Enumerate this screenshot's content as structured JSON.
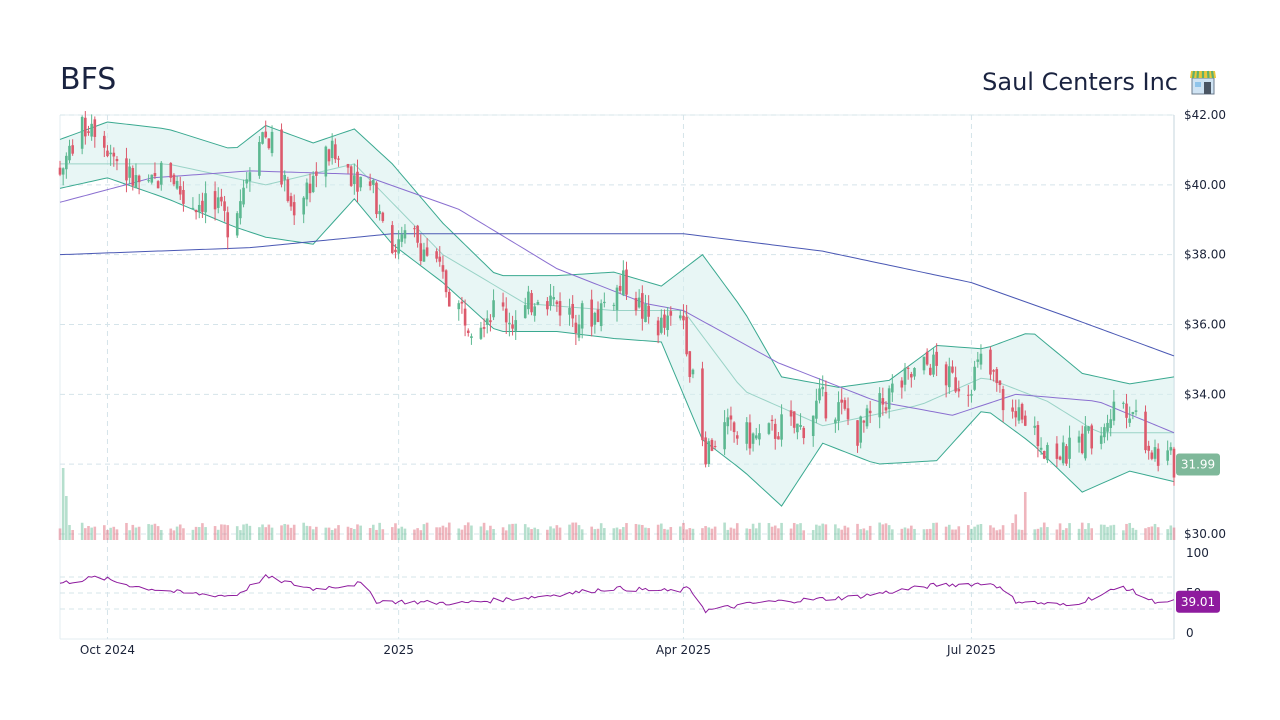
{
  "header": {
    "ticker": "BFS",
    "company": "Saul Centers Inc",
    "company_icon": "store-icon"
  },
  "colors": {
    "up": "#5cb891",
    "down": "#dc5a6c",
    "band_fill": "#d6efec",
    "band_line": "#3aa990",
    "mid_line": "#9ad3c7",
    "ma_short": "#8a6fd0",
    "ma_long": "#4a58b4",
    "rsi": "#8e1b9e",
    "price_badge": "#7fb89a",
    "rsi_badge": "#8e1b9e"
  },
  "chart_data": {
    "type": "candlestick",
    "price_axis": {
      "ylim": [
        30,
        42
      ],
      "ticks": [
        42,
        40,
        38,
        36,
        34,
        32,
        30
      ],
      "tick_labels": [
        "$42.00",
        "$40.00",
        "$38.00",
        "$36.00",
        "$34.00",
        "",
        "$30.00"
      ]
    },
    "x_axis": {
      "range": [
        "2024-09-16",
        "2025-09-03"
      ],
      "ticks": [
        {
          "date": "2024-10-01",
          "label": "Oct 2024"
        },
        {
          "date": "2025-01-01",
          "label": "2025"
        },
        {
          "date": "2025-04-01",
          "label": "Apr 2025"
        },
        {
          "date": "2025-07-01",
          "label": "Jul 2025"
        }
      ]
    },
    "last_price": "31.99",
    "grid": true,
    "series": {
      "close_points": [
        [
          "2024-09-16",
          40.3
        ],
        [
          "2024-09-20",
          41.2
        ],
        [
          "2024-09-26",
          41.9
        ],
        [
          "2024-10-02",
          41.0
        ],
        [
          "2024-10-08",
          40.2
        ],
        [
          "2024-10-14",
          39.8
        ],
        [
          "2024-10-20",
          40.6
        ],
        [
          "2024-10-26",
          39.4
        ],
        [
          "2024-11-01",
          39.6
        ],
        [
          "2024-11-08",
          38.9
        ],
        [
          "2024-11-12",
          39.7
        ],
        [
          "2024-11-18",
          41.6
        ],
        [
          "2024-11-22",
          41.2
        ],
        [
          "2024-11-28",
          39.3
        ],
        [
          "2024-12-04",
          40.1
        ],
        [
          "2024-12-10",
          40.9
        ],
        [
          "2024-12-16",
          40.5
        ],
        [
          "2024-12-22",
          40.0
        ],
        [
          "2024-12-28",
          39.2
        ],
        [
          "2024-12-30",
          38.2
        ],
        [
          "2025-01-06",
          38.5
        ],
        [
          "2025-01-12",
          37.8
        ],
        [
          "2025-01-18",
          36.7
        ],
        [
          "2025-01-24",
          36.1
        ],
        [
          "2025-02-01",
          36.5
        ],
        [
          "2025-02-08",
          36.0
        ],
        [
          "2025-02-14",
          37.0
        ],
        [
          "2025-02-20",
          36.6
        ],
        [
          "2025-02-26",
          36.2
        ],
        [
          "2025-03-04",
          36.3
        ],
        [
          "2025-03-10",
          36.9
        ],
        [
          "2025-03-14",
          37.2
        ],
        [
          "2025-03-20",
          36.2
        ],
        [
          "2025-03-26",
          35.9
        ],
        [
          "2025-04-01",
          36.2
        ],
        [
          "2025-04-04",
          34.3
        ],
        [
          "2025-04-08",
          32.4
        ],
        [
          "2025-04-14",
          33.0
        ],
        [
          "2025-04-20",
          32.8
        ],
        [
          "2025-04-26",
          32.7
        ],
        [
          "2025-05-02",
          33.1
        ],
        [
          "2025-05-08",
          33.0
        ],
        [
          "2025-05-14",
          33.8
        ],
        [
          "2025-05-20",
          33.6
        ],
        [
          "2025-05-26",
          32.9
        ],
        [
          "2025-06-01",
          33.5
        ],
        [
          "2025-06-06",
          34.1
        ],
        [
          "2025-06-12",
          34.5
        ],
        [
          "2025-06-18",
          34.9
        ],
        [
          "2025-06-24",
          34.4
        ],
        [
          "2025-06-30",
          34.3
        ],
        [
          "2025-07-04",
          34.9
        ],
        [
          "2025-07-08",
          34.4
        ],
        [
          "2025-07-12",
          33.6
        ],
        [
          "2025-07-18",
          33.0
        ],
        [
          "2025-07-24",
          32.6
        ],
        [
          "2025-07-30",
          32.2
        ],
        [
          "2025-08-05",
          32.7
        ],
        [
          "2025-08-11",
          33.1
        ],
        [
          "2025-08-17",
          33.9
        ],
        [
          "2025-08-21",
          33.6
        ],
        [
          "2025-08-27",
          32.4
        ],
        [
          "2025-09-03",
          31.99
        ]
      ],
      "bollinger_upper": [
        [
          "2024-09-16",
          41.3
        ],
        [
          "2024-10-01",
          41.8
        ],
        [
          "2024-10-20",
          41.6
        ],
        [
          "2024-11-10",
          41.0
        ],
        [
          "2024-11-20",
          41.7
        ],
        [
          "2024-12-05",
          41.2
        ],
        [
          "2024-12-18",
          41.6
        ],
        [
          "2024-12-30",
          40.6
        ],
        [
          "2025-01-15",
          38.9
        ],
        [
          "2025-02-01",
          37.4
        ],
        [
          "2025-02-20",
          37.4
        ],
        [
          "2025-03-10",
          37.5
        ],
        [
          "2025-03-25",
          37.1
        ],
        [
          "2025-04-07",
          38.0
        ],
        [
          "2025-04-20",
          36.4
        ],
        [
          "2025-05-02",
          34.5
        ],
        [
          "2025-05-20",
          34.2
        ],
        [
          "2025-06-05",
          34.4
        ],
        [
          "2025-06-20",
          35.4
        ],
        [
          "2025-07-05",
          35.3
        ],
        [
          "2025-07-20",
          35.8
        ],
        [
          "2025-08-05",
          34.6
        ],
        [
          "2025-08-20",
          34.3
        ],
        [
          "2025-09-03",
          34.5
        ]
      ],
      "bollinger_lower": [
        [
          "2024-09-16",
          39.9
        ],
        [
          "2024-10-01",
          40.2
        ],
        [
          "2024-10-20",
          39.6
        ],
        [
          "2024-11-10",
          38.8
        ],
        [
          "2024-11-20",
          38.5
        ],
        [
          "2024-12-05",
          38.3
        ],
        [
          "2024-12-18",
          39.6
        ],
        [
          "2024-12-30",
          38.3
        ],
        [
          "2025-01-15",
          37.2
        ],
        [
          "2025-02-01",
          35.8
        ],
        [
          "2025-02-20",
          35.8
        ],
        [
          "2025-03-10",
          35.6
        ],
        [
          "2025-03-25",
          35.5
        ],
        [
          "2025-04-07",
          32.7
        ],
        [
          "2025-04-20",
          31.8
        ],
        [
          "2025-05-02",
          30.8
        ],
        [
          "2025-05-15",
          32.6
        ],
        [
          "2025-06-01",
          32.0
        ],
        [
          "2025-06-20",
          32.1
        ],
        [
          "2025-07-05",
          33.6
        ],
        [
          "2025-07-20",
          32.6
        ],
        [
          "2025-08-05",
          31.2
        ],
        [
          "2025-08-20",
          31.8
        ],
        [
          "2025-09-03",
          31.5
        ]
      ],
      "bollinger_mid": [
        [
          "2024-09-16",
          40.6
        ],
        [
          "2024-10-20",
          40.6
        ],
        [
          "2024-11-20",
          40.0
        ],
        [
          "2024-12-18",
          40.6
        ],
        [
          "2025-01-15",
          38.0
        ],
        [
          "2025-02-10",
          36.6
        ],
        [
          "2025-03-10",
          36.4
        ],
        [
          "2025-04-01",
          36.4
        ],
        [
          "2025-04-20",
          34.1
        ],
        [
          "2025-05-15",
          33.1
        ],
        [
          "2025-06-15",
          33.7
        ],
        [
          "2025-07-05",
          34.5
        ],
        [
          "2025-07-25",
          33.8
        ],
        [
          "2025-08-10",
          32.9
        ],
        [
          "2025-09-03",
          32.9
        ]
      ],
      "ma_short": [
        [
          "2024-09-16",
          39.5
        ],
        [
          "2024-10-15",
          40.2
        ],
        [
          "2024-11-15",
          40.4
        ],
        [
          "2024-12-20",
          40.3
        ],
        [
          "2025-01-20",
          39.3
        ],
        [
          "2025-02-20",
          37.6
        ],
        [
          "2025-03-20",
          36.6
        ],
        [
          "2025-04-01",
          36.4
        ],
        [
          "2025-05-01",
          34.9
        ],
        [
          "2025-06-01",
          33.8
        ],
        [
          "2025-06-25",
          33.4
        ],
        [
          "2025-07-15",
          34.0
        ],
        [
          "2025-08-10",
          33.8
        ],
        [
          "2025-09-03",
          32.9
        ]
      ],
      "ma_long": [
        [
          "2024-09-16",
          38.0
        ],
        [
          "2024-11-15",
          38.2
        ],
        [
          "2024-12-30",
          38.6
        ],
        [
          "2025-02-15",
          38.6
        ],
        [
          "2025-04-01",
          38.6
        ],
        [
          "2025-05-15",
          38.1
        ],
        [
          "2025-07-01",
          37.2
        ],
        [
          "2025-08-01",
          36.2
        ],
        [
          "2025-09-03",
          35.1
        ]
      ]
    },
    "volume": [
      [
        "2024-09-17",
        0.9
      ],
      [
        "2024-09-18",
        0.55
      ],
      [
        "2024-10-20",
        0.25
      ],
      [
        "2024-12-20",
        0.18
      ],
      [
        "2025-04-04",
        0.14
      ],
      [
        "2025-07-15",
        0.32
      ],
      [
        "2025-07-18",
        0.6
      ],
      [
        "2025-08-12",
        0.19
      ]
    ],
    "rsi": {
      "ylim": [
        0,
        100
      ],
      "ticks": [
        100,
        50,
        0
      ],
      "tick_labels": [
        "100",
        "50",
        "0"
      ],
      "last_value": "39.01",
      "points": [
        [
          "2024-09-16",
          62
        ],
        [
          "2024-09-28",
          70
        ],
        [
          "2024-10-10",
          58
        ],
        [
          "2024-10-25",
          50
        ],
        [
          "2024-11-10",
          46
        ],
        [
          "2024-11-20",
          70
        ],
        [
          "2024-12-05",
          55
        ],
        [
          "2024-12-20",
          62
        ],
        [
          "2024-12-25",
          40
        ],
        [
          "2025-01-20",
          37
        ],
        [
          "2025-02-15",
          46
        ],
        [
          "2025-03-10",
          56
        ],
        [
          "2025-03-30",
          52
        ],
        [
          "2025-04-03",
          56
        ],
        [
          "2025-04-08",
          28
        ],
        [
          "2025-04-25",
          38
        ],
        [
          "2025-05-25",
          45
        ],
        [
          "2025-06-20",
          60
        ],
        [
          "2025-07-08",
          62
        ],
        [
          "2025-07-15",
          40
        ],
        [
          "2025-08-01",
          34
        ],
        [
          "2025-08-18",
          58
        ],
        [
          "2025-08-27",
          40
        ],
        [
          "2025-09-03",
          39
        ]
      ]
    }
  }
}
